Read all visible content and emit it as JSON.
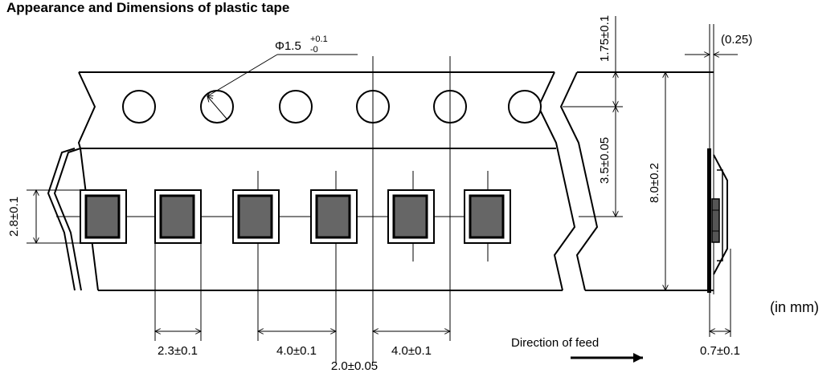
{
  "title": "Appearance and Dimensions of plastic tape",
  "hole_diameter": {
    "main": "Φ1.5",
    "plus": "+0.1",
    "minus": "-0"
  },
  "dimensions": {
    "edge_to_hole": "1.75±0.1",
    "hole_to_pocket_center": "3.5±0.05",
    "tape_width": "8.0±0.2",
    "pocket_height": "2.8±0.1",
    "pocket_width": "2.3±0.1",
    "pocket_pitch": "4.0±0.1",
    "hole_pitch": "4.0±0.1",
    "hole_to_pocket_offset": "2.0±0.05",
    "tape_thickness": "(0.25)",
    "pocket_depth": "0.7±0.1"
  },
  "feed_label": "Direction of feed",
  "units_label": "(in mm)"
}
